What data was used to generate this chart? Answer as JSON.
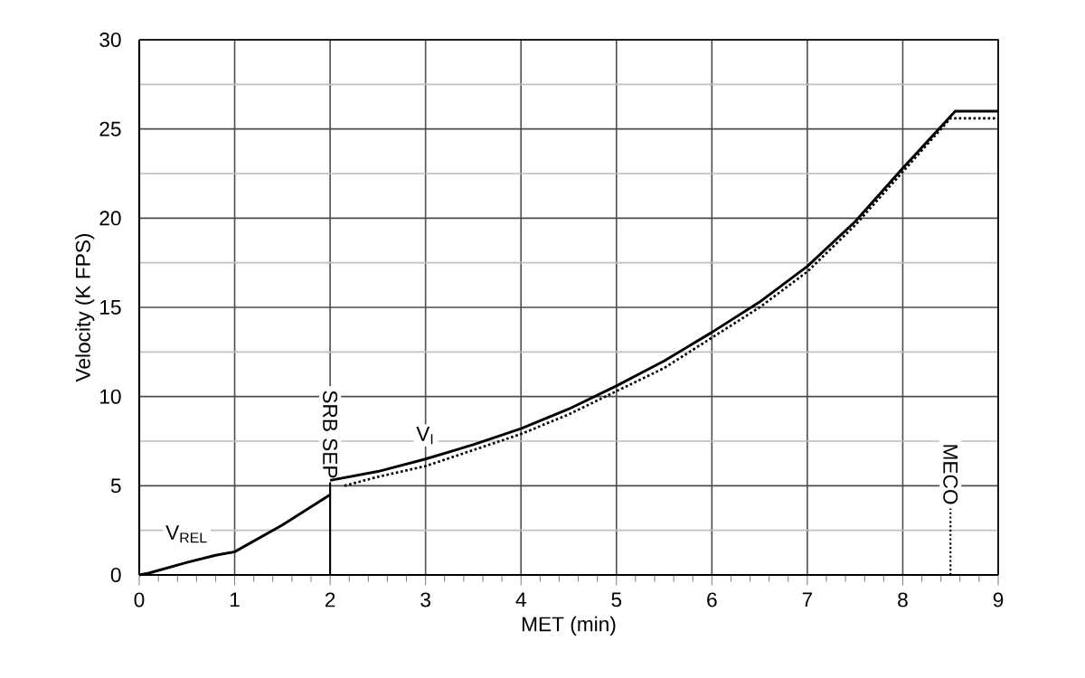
{
  "chart_data": {
    "type": "line",
    "xlabel": "MET (min)",
    "ylabel": "Velocity (K FPS)",
    "xlim": [
      0,
      9
    ],
    "xticks": [
      0,
      1,
      2,
      3,
      4,
      5,
      6,
      7,
      8,
      9
    ],
    "ylim": [
      0,
      30
    ],
    "yticks": [
      0,
      5,
      10,
      15,
      20,
      25,
      30
    ],
    "grid": true,
    "marker": "none",
    "series": [
      {
        "name": "V$_{REL}$",
        "color": "#000000",
        "line_style": "solid",
        "x": [
          0,
          0.1,
          0.5,
          0.8,
          1,
          1.5,
          2
        ],
        "values": [
          0,
          0.1,
          0.7,
          1.1,
          1.3,
          2.8,
          4.5
        ]
      },
      {
        "name": "V$_{I}$",
        "color": "#000000",
        "line_style": "solid",
        "x": [
          2,
          2.5,
          3,
          3.5,
          4,
          4.5,
          5,
          5.5,
          6,
          6.5,
          7,
          7.5,
          8,
          8.55,
          9
        ],
        "values": [
          5.3,
          5.8,
          6.5,
          7.3,
          8.2,
          9.3,
          10.6,
          12,
          13.6,
          15.3,
          17.3,
          19.8,
          22.8,
          26,
          26
        ]
      },
      {
        "color": "#000000",
        "line_style": "dotted",
        "x": [
          2.15,
          2.5,
          3,
          3.5,
          4,
          4.5,
          5,
          5.5,
          6,
          6.5,
          7,
          7.5,
          8,
          8.5,
          9
        ],
        "values": [
          5.0,
          5.5,
          6.1,
          7.0,
          7.9,
          9.0,
          10.3,
          11.6,
          13.3,
          15.0,
          17.0,
          19.6,
          22.6,
          25.6,
          25.6
        ]
      }
    ],
    "ref_lines": [
      {
        "axis": "x",
        "value": 2,
        "label": "SRB SEP",
        "line_style": "solid"
      },
      {
        "axis": "x",
        "value": 8.5,
        "label": "MECO",
        "line_style": "dotted"
      }
    ]
  }
}
